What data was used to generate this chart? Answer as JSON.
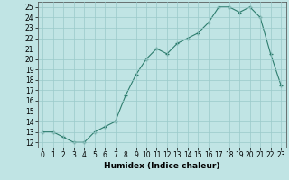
{
  "x": [
    0,
    1,
    2,
    3,
    4,
    5,
    6,
    7,
    8,
    9,
    10,
    11,
    12,
    13,
    14,
    15,
    16,
    17,
    18,
    19,
    20,
    21,
    22,
    23
  ],
  "y": [
    13.0,
    13.0,
    12.5,
    12.0,
    12.0,
    13.0,
    13.5,
    14.0,
    16.5,
    18.5,
    20.0,
    21.0,
    20.5,
    21.5,
    22.0,
    22.5,
    23.5,
    25.0,
    25.0,
    24.5,
    25.0,
    24.0,
    20.5,
    17.5
  ],
  "xlabel": "Humidex (Indice chaleur)",
  "ylim_min": 11.5,
  "ylim_max": 25.5,
  "xlim_min": -0.5,
  "xlim_max": 23.5,
  "yticks": [
    12,
    13,
    14,
    15,
    16,
    17,
    18,
    19,
    20,
    21,
    22,
    23,
    24,
    25
  ],
  "xticks": [
    0,
    1,
    2,
    3,
    4,
    5,
    6,
    7,
    8,
    9,
    10,
    11,
    12,
    13,
    14,
    15,
    16,
    17,
    18,
    19,
    20,
    21,
    22,
    23
  ],
  "line_color": "#2e7d6e",
  "marker": "+",
  "bg_color": "#c0e4e4",
  "grid_color": "#9acaca",
  "tick_fontsize": 5.5,
  "xlabel_fontsize": 6.5
}
